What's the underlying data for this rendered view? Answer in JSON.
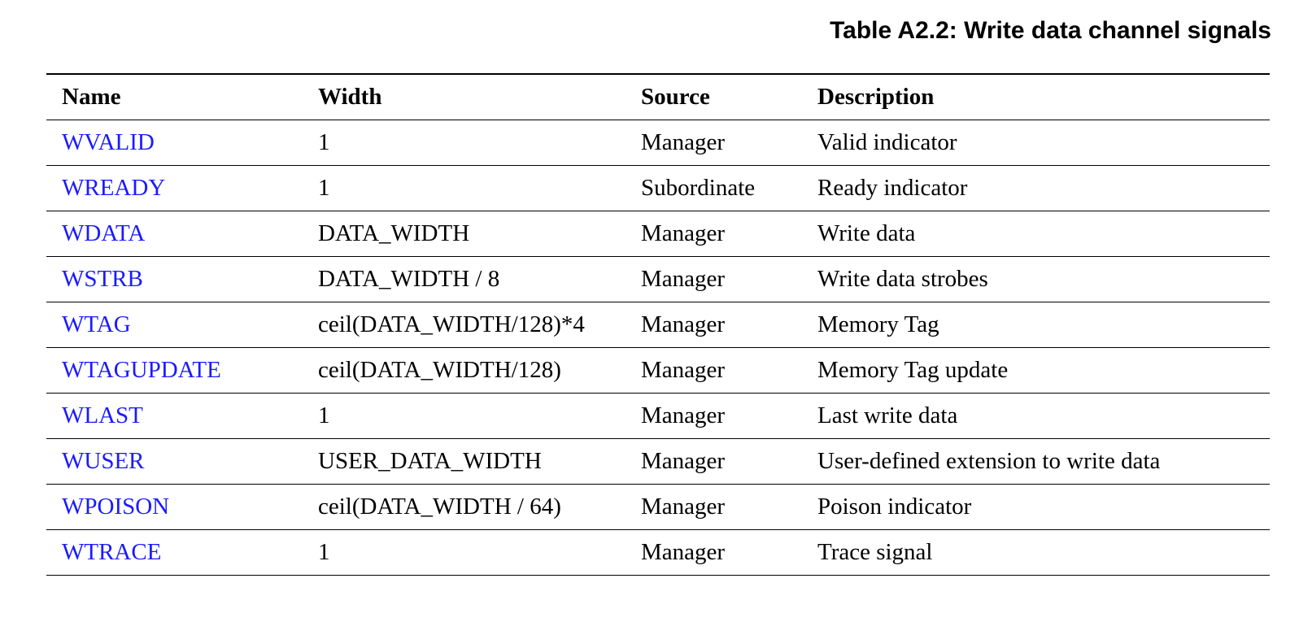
{
  "caption": "Table A2.2: Write data channel signals",
  "colors": {
    "link": "#1a1aff",
    "text": "#000000",
    "rule": "#000000"
  },
  "table": {
    "headers": {
      "name": "Name",
      "width": "Width",
      "source": "Source",
      "description": "Description"
    },
    "rows": [
      {
        "name": "WVALID",
        "width": "1",
        "source": "Manager",
        "description": "Valid indicator"
      },
      {
        "name": "WREADY",
        "width": "1",
        "source": "Subordinate",
        "description": "Ready indicator"
      },
      {
        "name": "WDATA",
        "width": "DATA_WIDTH",
        "source": "Manager",
        "description": "Write data"
      },
      {
        "name": "WSTRB",
        "width": "DATA_WIDTH / 8",
        "source": "Manager",
        "description": "Write data strobes"
      },
      {
        "name": "WTAG",
        "width": "ceil(DATA_WIDTH/128)*4",
        "source": "Manager",
        "description": "Memory Tag"
      },
      {
        "name": "WTAGUPDATE",
        "width": "ceil(DATA_WIDTH/128)",
        "source": "Manager",
        "description": "Memory Tag update"
      },
      {
        "name": "WLAST",
        "width": "1",
        "source": "Manager",
        "description": "Last write data"
      },
      {
        "name": "WUSER",
        "width": "USER_DATA_WIDTH",
        "source": "Manager",
        "description": "User-defined extension to write data"
      },
      {
        "name": "WPOISON",
        "width": "ceil(DATA_WIDTH / 64)",
        "source": "Manager",
        "description": "Poison indicator"
      },
      {
        "name": "WTRACE",
        "width": "1",
        "source": "Manager",
        "description": "Trace signal"
      }
    ]
  }
}
